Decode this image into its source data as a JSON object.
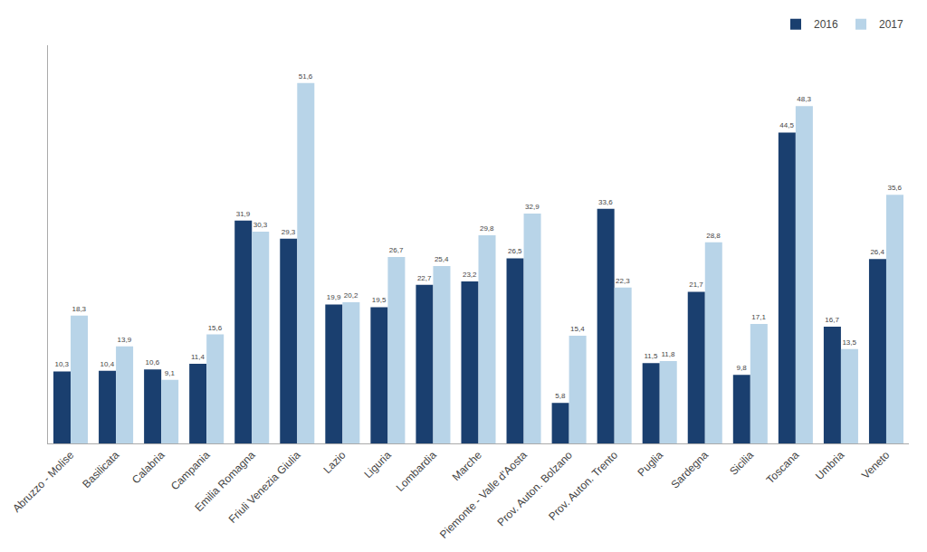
{
  "chart_data": {
    "type": "bar",
    "categories": [
      "Abruzzo - Molise",
      "Basilicata",
      "Calabria",
      "Campania",
      "Emilia Romagna",
      "Friuli Venezia Giulia",
      "Lazio",
      "Liguria",
      "Lombardia",
      "Marche",
      "Piemonte - Valle d'Aosta",
      "Prov. Auton. Bolzano",
      "Prov. Auton. Trento",
      "Puglia",
      "Sardegna",
      "Sicilia",
      "Toscana",
      "Umbria",
      "Veneto"
    ],
    "series": [
      {
        "name": "2016",
        "color": "#1a3f6f",
        "values": [
          10.3,
          10.4,
          10.6,
          11.4,
          31.9,
          29.3,
          19.9,
          19.5,
          22.7,
          23.2,
          26.5,
          5.8,
          33.6,
          11.5,
          21.7,
          9.8,
          44.5,
          16.7,
          26.4
        ],
        "value_labels": [
          "10,3",
          "10,4",
          "10,6",
          "11,4",
          "31,9",
          "29,3",
          "19,9",
          "19,5",
          "22,7",
          "23,2",
          "26,5",
          "5,8",
          "33,6",
          "11,5",
          "21,7",
          "9,8",
          "44,5",
          "16,7",
          "26,4"
        ]
      },
      {
        "name": "2017",
        "color": "#b8d4e8",
        "values": [
          18.3,
          13.9,
          9.1,
          15.6,
          30.3,
          51.6,
          20.2,
          26.7,
          25.4,
          29.8,
          32.9,
          15.4,
          22.3,
          11.8,
          28.8,
          17.1,
          48.3,
          13.5,
          35.6
        ],
        "value_labels": [
          "18,3",
          "13,9",
          "9,1",
          "15,6",
          "30,3",
          "51,6",
          "20,2",
          "26,7",
          "25,4",
          "29,8",
          "32,9",
          "15,4",
          "22,3",
          "11,8",
          "28,8",
          "17,1",
          "48,3",
          "13,5",
          "35,6"
        ]
      }
    ],
    "ylim": [
      0,
      57
    ],
    "grid": false,
    "legend": "upper right",
    "data_labels": true,
    "tick_labels": "x"
  }
}
